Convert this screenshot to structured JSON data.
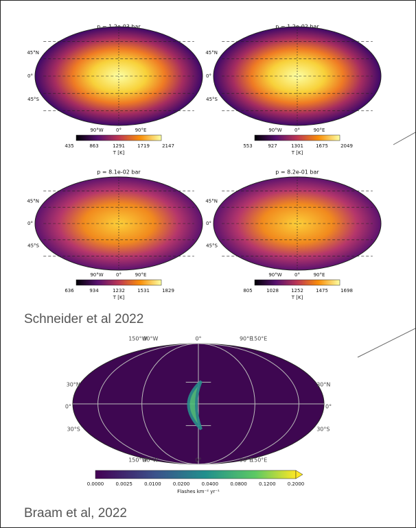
{
  "panels": [
    {
      "title": "p = 1.2e-03 bar",
      "lat_labels": [
        "45°N",
        "0°",
        "45°S"
      ],
      "lon_labels": [
        "90°W",
        "0°",
        "90°E"
      ],
      "colorbar_ticks": [
        "435",
        "863",
        "1291",
        "1719",
        "2147"
      ],
      "colorbar_label": "T [K]"
    },
    {
      "title": "p = 1.2e-02 bar",
      "lat_labels": [
        "45°N",
        "0°",
        "45°S"
      ],
      "lon_labels": [
        "90°W",
        "0°",
        "90°E"
      ],
      "colorbar_ticks": [
        "553",
        "927",
        "1301",
        "1675",
        "2049"
      ],
      "colorbar_label": "T [K]"
    },
    {
      "title": "p = 8.1e-02 bar",
      "lat_labels": [
        "45°N",
        "0°",
        "45°S"
      ],
      "lon_labels": [
        "90°W",
        "0°",
        "90°E"
      ],
      "colorbar_ticks": [
        "636",
        "934",
        "1232",
        "1531",
        "1829"
      ],
      "colorbar_label": "T [K]"
    },
    {
      "title": "p = 8.2e-01 bar",
      "lat_labels": [
        "45°N",
        "0°",
        "45°S"
      ],
      "lon_labels": [
        "90°W",
        "0°",
        "90°E"
      ],
      "colorbar_ticks": [
        "805",
        "1028",
        "1252",
        "1475",
        "1698"
      ],
      "colorbar_label": "T [K]"
    }
  ],
  "credit_top": "Schneider et al 2022",
  "lightning": {
    "lon_labels": [
      "150°W",
      "90°W",
      "0°",
      "90°E",
      "150°E"
    ],
    "lat_labels": [
      "30°N",
      "0°",
      "30°S"
    ],
    "colorbar_ticks": [
      "0.0000",
      "0.0025",
      "0.0100",
      "0.0200",
      "0.0400",
      "0.0800",
      "0.1200",
      "0.2000"
    ],
    "colorbar_label": "Flashes km⁻² yr⁻¹"
  },
  "credit_bottom": "Braam et al, 2022"
}
